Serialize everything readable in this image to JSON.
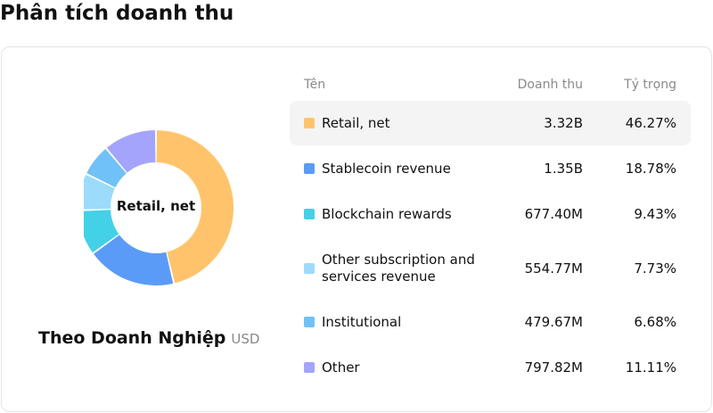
{
  "page": {
    "title": "Phân tích doanh thu"
  },
  "table": {
    "headers": {
      "name": "Tên",
      "revenue": "Doanh thu",
      "share": "Tỷ trọng"
    }
  },
  "caption": {
    "main": "Theo Doanh Nghiệp",
    "unit": "USD"
  },
  "chart_data": {
    "type": "pie",
    "style": "donut",
    "center_label": "Retail, net",
    "categories": [
      "Retail, net",
      "Stablecoin revenue",
      "Blockchain rewards",
      "Other subscription and services revenue",
      "Institutional",
      "Other"
    ],
    "values_display": [
      "3.32B",
      "1.35B",
      "677.40M",
      "554.77M",
      "479.67M",
      "797.82M"
    ],
    "shares_display": [
      "46.27%",
      "18.78%",
      "9.43%",
      "7.73%",
      "6.68%",
      "11.11%"
    ],
    "shares": [
      46.27,
      18.78,
      9.43,
      7.73,
      6.68,
      11.11
    ],
    "colors": [
      "#FFC46B",
      "#5B9BF8",
      "#42D1E6",
      "#9CDBFA",
      "#6FC1F8",
      "#A4A4FC"
    ],
    "highlighted": "Retail, net"
  }
}
